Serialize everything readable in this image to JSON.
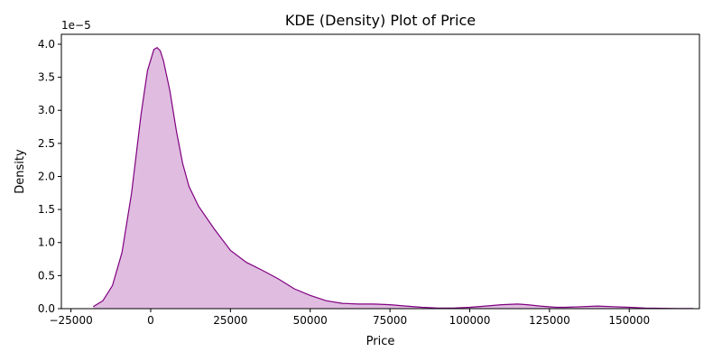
{
  "chart_data": {
    "type": "area",
    "title": "KDE (Density) Plot of Price",
    "xlabel": "Price",
    "ylabel": "Density",
    "y_offset_label": "1e−5",
    "xlim": [
      -28000,
      172000
    ],
    "ylim": [
      0,
      4.15
    ],
    "xticks": [
      -25000,
      0,
      25000,
      50000,
      75000,
      100000,
      125000,
      150000,
      175000
    ],
    "xtick_labels": [
      "−25000",
      "0",
      "25000",
      "50000",
      "75000",
      "100000",
      "125000",
      "150000",
      ""
    ],
    "yticks": [
      0,
      0.5,
      1.0,
      1.5,
      2.0,
      2.5,
      3.0,
      3.5,
      4.0
    ],
    "ytick_labels": [
      "0.0",
      "0.5",
      "1.0",
      "1.5",
      "2.0",
      "2.5",
      "3.0",
      "3.5",
      "4.0"
    ],
    "grid": false,
    "line_color": "#800080",
    "fill_color": "#dfbce0",
    "series": [
      {
        "x": [
          -18000,
          -15000,
          -12000,
          -9000,
          -6000,
          -3000,
          -1000,
          1000,
          2000,
          3000,
          4000,
          6000,
          8000,
          10000,
          12000,
          15000,
          20000,
          25000,
          30000,
          35000,
          40000,
          45000,
          50000,
          55000,
          60000,
          65000,
          70000,
          75000,
          80000,
          85000,
          90000,
          95000,
          100000,
          105000,
          110000,
          115000,
          118000,
          122000,
          127000,
          130000,
          135000,
          140000,
          145000,
          150000,
          155000,
          160000,
          165000,
          170000
        ],
        "y": [
          0.03,
          0.12,
          0.35,
          0.85,
          1.75,
          2.95,
          3.6,
          3.92,
          3.95,
          3.9,
          3.75,
          3.3,
          2.7,
          2.2,
          1.85,
          1.55,
          1.2,
          0.88,
          0.7,
          0.58,
          0.45,
          0.3,
          0.2,
          0.12,
          0.08,
          0.07,
          0.07,
          0.06,
          0.04,
          0.02,
          0.01,
          0.01,
          0.02,
          0.04,
          0.06,
          0.07,
          0.06,
          0.04,
          0.02,
          0.02,
          0.03,
          0.04,
          0.03,
          0.02,
          0.01,
          0.005,
          0.002,
          0.001
        ]
      }
    ]
  }
}
